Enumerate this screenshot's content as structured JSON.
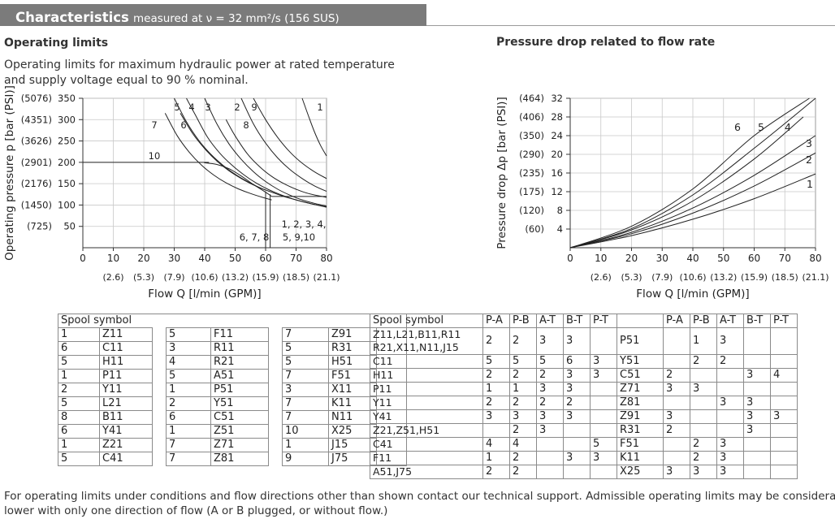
{
  "header": {
    "title": "Characteristics",
    "subtitle": "measured at ν = 32 mm²/s (156 SUS)"
  },
  "left_section": {
    "heading": "Operating limits",
    "desc_line1": "Operating limits for maximum hydraulic power at rated temperature",
    "desc_line2": "and supply voltage equal to 90 % nominal."
  },
  "right_section": {
    "heading": "Pressure drop related to flow rate"
  },
  "footer": {
    "line1": "For operating limits under conditions and flow directions other than shown contact our technical support. Admissible operating limits may be considerably",
    "line2": "lower with only one direction of flow (A or B plugged, or without flow.)"
  },
  "chart_data": [
    {
      "type": "line",
      "xlabel": "Flow Q [l/min (GPM)]",
      "ylabel": "Operating pressure p [bar (PSI)]",
      "xlim": [
        0,
        80
      ],
      "ylim": [
        0,
        350
      ],
      "x_ticks": [
        "0",
        "10",
        "20",
        "30",
        "40",
        "50",
        "60",
        "70",
        "80"
      ],
      "x_ticks_gpm": [
        "(2.6)",
        "(5.3)",
        "(7.9)",
        "(10.6)",
        "(13.2)",
        "(15.9)",
        "(18.5)",
        "(21.1)"
      ],
      "y_ticks": [
        {
          "bar": "350",
          "psi": "(5076)"
        },
        {
          "bar": "300",
          "psi": "(4351)"
        },
        {
          "bar": "250",
          "psi": "(3626)"
        },
        {
          "bar": "200",
          "psi": "(2901)"
        },
        {
          "bar": "150",
          "psi": "(2176)"
        },
        {
          "bar": "100",
          "psi": "(1450)"
        },
        {
          "bar": "50",
          "psi": "(725)"
        }
      ],
      "grid": true,
      "series": [
        {
          "name": "1",
          "x": [
            72,
            74,
            76,
            78,
            80
          ],
          "y": [
            350,
            310,
            272,
            240,
            215
          ]
        },
        {
          "name": "9",
          "x": [
            56,
            60,
            64,
            68,
            72,
            76,
            80
          ],
          "y": [
            350,
            300,
            258,
            224,
            198,
            178,
            162
          ]
        },
        {
          "name": "2",
          "x": [
            52,
            56,
            60,
            64,
            68,
            72,
            76,
            80
          ],
          "y": [
            350,
            290,
            245,
            210,
            183,
            162,
            145,
            132
          ]
        },
        {
          "name": "8",
          "x": [
            47,
            50,
            54,
            58,
            62,
            66,
            70,
            74,
            80
          ],
          "y": [
            300,
            262,
            220,
            190,
            167,
            150,
            137,
            127,
            118
          ]
        },
        {
          "name": "3",
          "x": [
            40,
            44,
            48,
            52,
            56,
            60,
            64,
            68,
            72,
            76,
            80
          ],
          "y": [
            350,
            290,
            243,
            207,
            178,
            155,
            137,
            123,
            112,
            104,
            98
          ]
        },
        {
          "name": "4",
          "x": [
            34,
            37,
            41,
            45,
            49,
            53,
            57,
            61,
            65,
            70,
            75,
            80
          ],
          "y": [
            350,
            310,
            258,
            221,
            193,
            170,
            151,
            136,
            124,
            112,
            103,
            95
          ]
        },
        {
          "name": "5",
          "x": [
            30,
            34,
            38,
            42,
            46,
            50,
            54,
            58,
            62,
            66,
            70,
            75,
            80
          ],
          "y": [
            350,
            295,
            252,
            219,
            193,
            172,
            155,
            141,
            130,
            120,
            112,
            103,
            96
          ]
        },
        {
          "name": "6",
          "x": [
            32,
            36,
            40,
            44,
            48,
            52,
            56,
            60
          ],
          "y": [
            315,
            268,
            232,
            203,
            180,
            162,
            147,
            135
          ]
        },
        {
          "name": "7",
          "x": [
            27,
            31,
            35,
            39,
            43,
            47,
            51,
            55,
            59,
            62
          ],
          "y": [
            315,
            262,
            223,
            193,
            170,
            152,
            138,
            127,
            118,
            112
          ]
        },
        {
          "name": "10",
          "x": [
            0,
            38,
            40,
            44,
            48,
            52,
            56,
            60,
            62
          ],
          "y": [
            200,
            200,
            199,
            195,
            185,
            168,
            148,
            130,
            120
          ]
        }
      ],
      "annotations": [
        "6, 7, 8",
        "1, 2, 3, 4,",
        "5, 9,10"
      ]
    },
    {
      "type": "line",
      "xlabel": "Flow Q [l/min (GPM)]",
      "ylabel": "Pressure drop Δp [bar (PSI)]",
      "xlim": [
        0,
        80
      ],
      "ylim": [
        0,
        32
      ],
      "x_ticks": [
        "0",
        "10",
        "20",
        "30",
        "40",
        "50",
        "60",
        "70",
        "80"
      ],
      "x_ticks_gpm": [
        "(2.6)",
        "(5.3)",
        "(7.9)",
        "(10.6)",
        "(13.2)",
        "(15.9)",
        "(18.5)",
        "(21.1)"
      ],
      "y_ticks": [
        {
          "bar": "32",
          "psi": "(464)"
        },
        {
          "bar": "28",
          "psi": "(406)"
        },
        {
          "bar": "24",
          "psi": "(350)"
        },
        {
          "bar": "20",
          "psi": "(290)"
        },
        {
          "bar": "16",
          "psi": "(235)"
        },
        {
          "bar": "12",
          "psi": "(175)"
        },
        {
          "bar": "8",
          "psi": "(120)"
        },
        {
          "bar": "4",
          "psi": "(60)"
        }
      ],
      "grid": true,
      "series": [
        {
          "name": "1",
          "x": [
            0,
            20,
            40,
            60,
            80
          ],
          "y": [
            0,
            2.6,
            6.1,
            10.5,
            15.8
          ]
        },
        {
          "name": "2",
          "x": [
            0,
            20,
            40,
            60,
            80
          ],
          "y": [
            0,
            3.0,
            7.4,
            13.2,
            20.3
          ]
        },
        {
          "name": "3",
          "x": [
            0,
            20,
            40,
            60,
            80
          ],
          "y": [
            0,
            3.3,
            8.5,
            15.5,
            24.0
          ]
        },
        {
          "name": "4",
          "x": [
            0,
            20,
            40,
            60,
            76
          ],
          "y": [
            0,
            3.8,
            10.0,
            19.0,
            28.0
          ]
        },
        {
          "name": "5",
          "x": [
            0,
            20,
            40,
            60,
            80
          ],
          "y": [
            0,
            4.1,
            11.3,
            21.3,
            32.0
          ]
        },
        {
          "name": "6",
          "x": [
            0,
            20,
            40,
            60,
            78
          ],
          "y": [
            0,
            4.6,
            12.6,
            24.0,
            32.0
          ]
        }
      ]
    }
  ],
  "spool_table": {
    "header": "Spool symbol",
    "rows": [
      [
        "1",
        "Z11",
        "5",
        "F11",
        "7",
        "Z91"
      ],
      [
        "6",
        "C11",
        "3",
        "R11",
        "5",
        "R31"
      ],
      [
        "5",
        "H11",
        "4",
        "R21",
        "5",
        "H51"
      ],
      [
        "1",
        "P11",
        "5",
        "A51",
        "7",
        "F51"
      ],
      [
        "2",
        "Y11",
        "1",
        "P51",
        "3",
        "X11"
      ],
      [
        "5",
        "L21",
        "2",
        "Y51",
        "7",
        "K11"
      ],
      [
        "8",
        "B11",
        "6",
        "C51",
        "7",
        "N11"
      ],
      [
        "6",
        "Y41",
        "1",
        "Z51",
        "10",
        "X25"
      ],
      [
        "1",
        "Z21",
        "7",
        "Z71",
        "1",
        "J15"
      ],
      [
        "5",
        "C41",
        "7",
        "Z81",
        "9",
        "J75"
      ]
    ]
  },
  "pressure_table": {
    "header": "Spool symbol",
    "columns": [
      "P-A",
      "P-B",
      "A-T",
      "B-T",
      "P-T"
    ],
    "left_rows": [
      {
        "spool": "Z11,L21,B11,R11",
        "spool2": "R21,X11,N11,J15",
        "v": [
          "2",
          "2",
          "3",
          "3",
          ""
        ]
      },
      {
        "spool": "C11",
        "v": [
          "5",
          "5",
          "5",
          "6",
          "3"
        ]
      },
      {
        "spool": "H11",
        "v": [
          "2",
          "2",
          "2",
          "3",
          "3"
        ]
      },
      {
        "spool": "P11",
        "v": [
          "1",
          "1",
          "3",
          "3",
          ""
        ]
      },
      {
        "spool": "Y11",
        "v": [
          "2",
          "2",
          "2",
          "2",
          ""
        ]
      },
      {
        "spool": "Y41",
        "v": [
          "3",
          "3",
          "3",
          "3",
          ""
        ]
      },
      {
        "spool": "Z21,Z51,H51",
        "v": [
          "",
          "2",
          "3",
          "",
          ""
        ]
      },
      {
        "spool": "C41",
        "v": [
          "4",
          "4",
          "",
          "",
          "5"
        ]
      },
      {
        "spool": "F11",
        "v": [
          "1",
          "2",
          "",
          "3",
          "3"
        ]
      },
      {
        "spool": "A51,J75",
        "v": [
          "2",
          "2",
          "",
          "",
          ""
        ]
      }
    ],
    "right_rows": [
      {
        "spool": "P51",
        "v": [
          "",
          "1",
          "3",
          "",
          ""
        ]
      },
      {
        "spool": "Y51",
        "v": [
          "",
          "2",
          "2",
          "",
          ""
        ]
      },
      {
        "spool": "C51",
        "v": [
          "2",
          "",
          "",
          "3",
          "4"
        ]
      },
      {
        "spool": "Z71",
        "v": [
          "3",
          "3",
          "",
          "",
          ""
        ]
      },
      {
        "spool": "Z81",
        "v": [
          "",
          "",
          "3",
          "3",
          ""
        ]
      },
      {
        "spool": "Z91",
        "v": [
          "3",
          "",
          "",
          "3",
          "3"
        ]
      },
      {
        "spool": "R31",
        "v": [
          "2",
          "",
          "",
          "3",
          ""
        ]
      },
      {
        "spool": "F51",
        "v": [
          "",
          "2",
          "3",
          "",
          ""
        ]
      },
      {
        "spool": "K11",
        "v": [
          "",
          "2",
          "3",
          "",
          ""
        ]
      },
      {
        "spool": "X25",
        "v": [
          "3",
          "3",
          "3",
          "",
          ""
        ]
      }
    ]
  }
}
